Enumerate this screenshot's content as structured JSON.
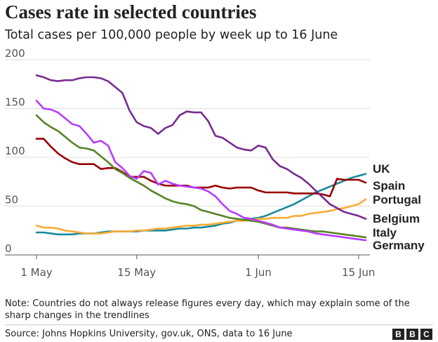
{
  "chart_data": {
    "type": "line",
    "title": "Cases rate in selected countries",
    "subtitle": "Total cases per 100,000 people by week up to 16 June",
    "xlabel": "",
    "ylabel": "",
    "x": [
      "May 1",
      "May 2",
      "May 3",
      "May 4",
      "May 5",
      "May 6",
      "May 7",
      "May 8",
      "May 9",
      "May 10",
      "May 11",
      "May 12",
      "May 13",
      "May 14",
      "May 15",
      "May 16",
      "May 17",
      "May 18",
      "May 19",
      "May 20",
      "May 21",
      "May 22",
      "May 23",
      "May 24",
      "May 25",
      "May 26",
      "May 27",
      "May 28",
      "May 29",
      "May 30",
      "May 31",
      "Jun 1",
      "Jun 2",
      "Jun 3",
      "Jun 4",
      "Jun 5",
      "Jun 6",
      "Jun 7",
      "Jun 8",
      "Jun 9",
      "Jun 10",
      "Jun 11",
      "Jun 12",
      "Jun 13",
      "Jun 14",
      "Jun 15",
      "Jun 16"
    ],
    "x_ticks": [
      "1 May",
      "15 May",
      "1 Jun",
      "15 Jun"
    ],
    "y_ticks": [
      "0",
      "50",
      "100",
      "150",
      "200"
    ],
    "ylim": [
      0,
      200
    ],
    "grid": "horizontal",
    "legend": "direct labels at line ends (right)",
    "series": [
      {
        "name": "UK",
        "color": "#1a8a9b",
        "values": [
          23,
          23,
          22,
          21,
          21,
          21,
          22,
          22,
          22,
          23,
          24,
          24,
          24,
          24,
          24,
          25,
          25,
          25,
          25,
          26,
          27,
          27,
          28,
          28,
          29,
          30,
          32,
          33,
          35,
          36,
          37,
          38,
          40,
          43,
          46,
          49,
          52,
          56,
          60,
          64,
          67,
          70,
          73,
          76,
          79,
          81,
          83
        ]
      },
      {
        "name": "Spain",
        "color": "#990000",
        "values": [
          119,
          119,
          111,
          104,
          99,
          95,
          93,
          93,
          93,
          88,
          89,
          89,
          85,
          80,
          80,
          80,
          76,
          73,
          71,
          71,
          71,
          71,
          69,
          69,
          69,
          71,
          69,
          68,
          69,
          69,
          69,
          66,
          64,
          64,
          64,
          64,
          63,
          63,
          63,
          63,
          62,
          60,
          78,
          77,
          77,
          77,
          74
        ]
      },
      {
        "name": "Portugal",
        "color": "#faab36",
        "values": [
          30,
          28,
          28,
          27,
          25,
          24,
          23,
          22,
          22,
          22,
          23,
          24,
          24,
          24,
          25,
          25,
          26,
          27,
          27,
          28,
          29,
          30,
          30,
          31,
          31,
          32,
          33,
          34,
          35,
          35,
          36,
          37,
          37,
          38,
          38,
          38,
          40,
          40,
          42,
          43,
          44,
          45,
          47,
          48,
          50,
          52,
          57
        ]
      },
      {
        "name": "Belgium",
        "color": "#772b90",
        "values": [
          184,
          182,
          179,
          178,
          179,
          179,
          181,
          182,
          182,
          181,
          178,
          172,
          166,
          148,
          136,
          132,
          130,
          124,
          130,
          133,
          143,
          147,
          146,
          146,
          137,
          122,
          120,
          115,
          110,
          108,
          107,
          112,
          110,
          98,
          91,
          88,
          83,
          79,
          73,
          66,
          59,
          52,
          48,
          44,
          42,
          40,
          37
        ]
      },
      {
        "name": "Italy",
        "color": "#588324",
        "values": [
          143,
          136,
          131,
          127,
          121,
          115,
          110,
          109,
          107,
          101,
          95,
          88,
          84,
          79,
          75,
          71,
          66,
          62,
          58,
          55,
          53,
          52,
          50,
          46,
          44,
          42,
          40,
          38,
          37,
          36,
          35,
          34,
          32,
          30,
          28,
          28,
          27,
          26,
          25,
          24,
          24,
          23,
          22,
          21,
          20,
          19,
          18
        ]
      },
      {
        "name": "Germany",
        "color": "#b63bff",
        "values": [
          158,
          150,
          149,
          146,
          140,
          134,
          132,
          124,
          115,
          117,
          112,
          95,
          89,
          81,
          78,
          86,
          84,
          72,
          76,
          73,
          71,
          70,
          69,
          68,
          65,
          60,
          52,
          45,
          42,
          38,
          37,
          35,
          33,
          31,
          28,
          27,
          26,
          25,
          24,
          22,
          21,
          20,
          19,
          18,
          17,
          16,
          15
        ]
      }
    ]
  },
  "note": "Note: Countries do not always release figures every day, which may explain some of the sharp changes in the trendlines",
  "source": "Source: Johns Hopkins University, gov.uk, ONS, data to 16 June",
  "logo": [
    "B",
    "B",
    "C"
  ]
}
